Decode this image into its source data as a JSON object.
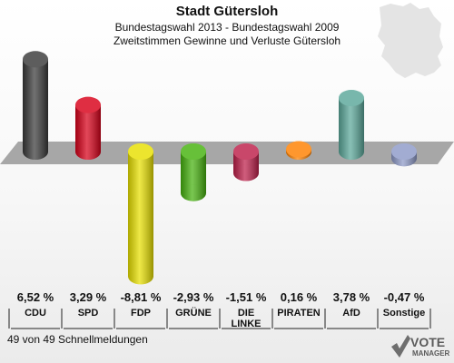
{
  "header": {
    "title": "Stadt Gütersloh",
    "subtitle": "Bundestagswahl 2013 - Bundestagswahl 2009",
    "subtitle2": "Zweitstimmen Gewinne und Verluste Gütersloh"
  },
  "footer": {
    "note": "49 von 49 Schnellmeldungen"
  },
  "brand": {
    "line1": "VOTE",
    "line2": "MANAGER"
  },
  "chart_data": {
    "type": "bar",
    "categories": [
      "CDU",
      "SPD",
      "FDP",
      "GRÜNE",
      "DIE LINKE",
      "PIRATEN",
      "AfD",
      "Sonstige"
    ],
    "values": [
      6.52,
      3.29,
      -8.81,
      -2.93,
      -1.51,
      0.16,
      3.78,
      -0.47
    ],
    "value_labels": [
      "6,52 %",
      "3,29 %",
      "-8,81 %",
      "-2,93 %",
      "-1,51 %",
      "0,16 %",
      "3,78 %",
      "-0,47 %"
    ],
    "colors": [
      "#3a3a3a",
      "#d80019",
      "#e8e000",
      "#46b20e",
      "#be1f4a",
      "#ff8100",
      "#5ba89a",
      "#8e9ac8"
    ],
    "baseline": 0,
    "grid": false,
    "legend": "none"
  }
}
